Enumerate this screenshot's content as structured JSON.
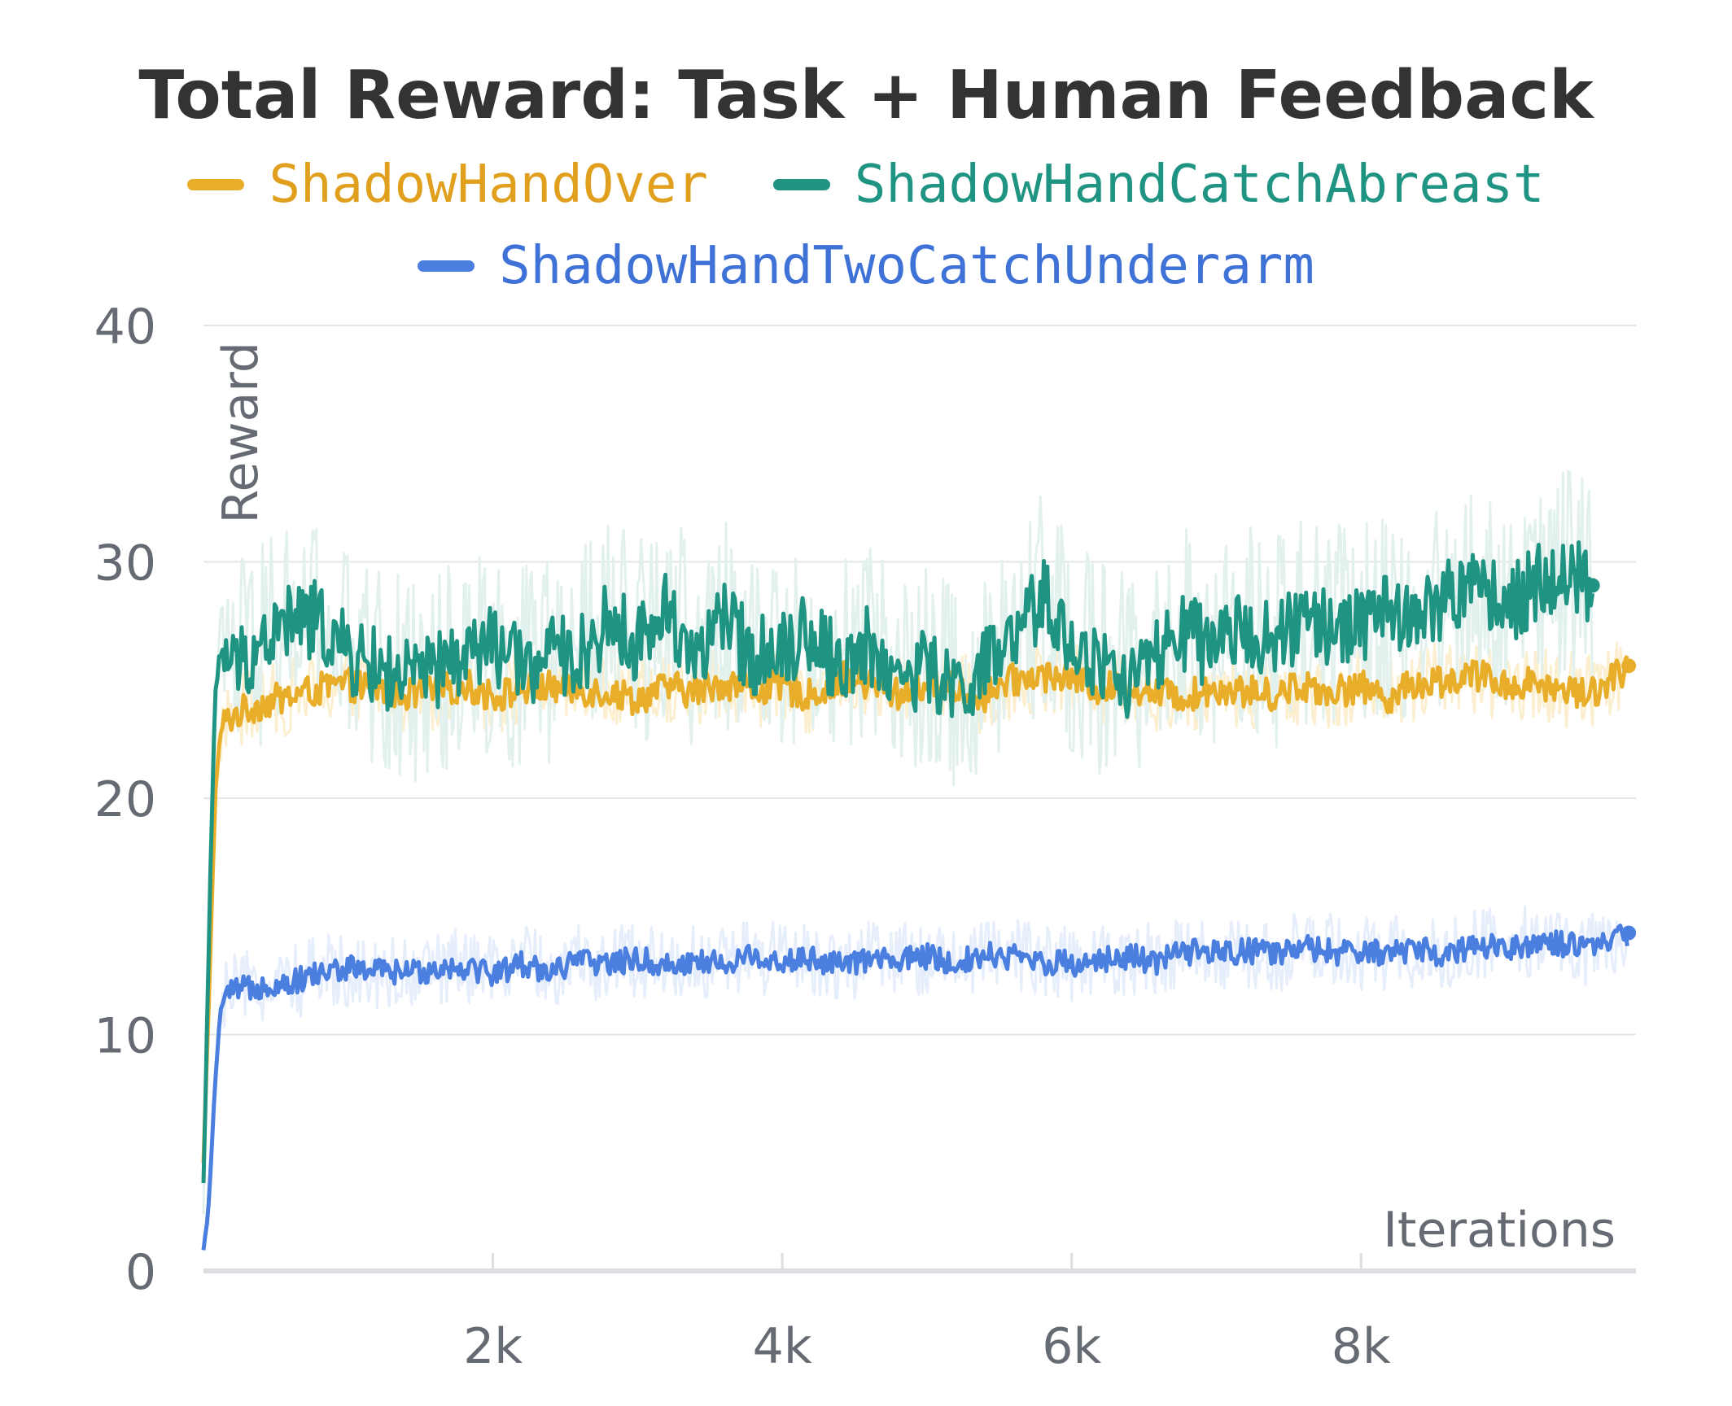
{
  "chart_data": {
    "type": "line",
    "title": "Total Reward: Task + Human Feedback",
    "xlabel": "Iterations",
    "ylabel": "Reward",
    "xlim": [
      0,
      9900
    ],
    "ylim": [
      0,
      40
    ],
    "xticks": [
      2000,
      4000,
      6000,
      8000
    ],
    "xtick_labels": [
      "2k",
      "4k",
      "6k",
      "8k"
    ],
    "yticks": [
      0,
      10,
      20,
      30,
      40
    ],
    "ytick_labels": [
      "0",
      "10",
      "20",
      "30",
      "40"
    ],
    "grid": true,
    "legend_position": "top",
    "series": [
      {
        "name": "ShadowHandOver",
        "color": "#E8AE2A",
        "x": [
          0,
          40,
          80,
          120,
          200,
          400,
          600,
          800,
          1000,
          1200,
          1400,
          1600,
          1800,
          2000,
          2200,
          2400,
          2600,
          2800,
          3000,
          3200,
          3400,
          3600,
          3800,
          4000,
          4200,
          4400,
          4600,
          4800,
          5000,
          5200,
          5400,
          5600,
          5800,
          6000,
          6200,
          6400,
          6600,
          6800,
          7000,
          7200,
          7400,
          7600,
          7800,
          8000,
          8200,
          8400,
          8600,
          8800,
          9000,
          9200,
          9400,
          9600,
          9850
        ],
        "values": [
          4.5,
          12,
          20,
          23,
          23.5,
          24,
          24.3,
          24.6,
          24.8,
          24.6,
          24.4,
          24.5,
          24.8,
          24.3,
          24.6,
          24.7,
          24.6,
          24.5,
          24.2,
          24.7,
          24.5,
          24.9,
          24.6,
          24.7,
          24.3,
          25.1,
          24.8,
          24.4,
          24.9,
          24.6,
          24.3,
          25.0,
          25.2,
          25.1,
          24.6,
          24.8,
          24.4,
          24.3,
          24.7,
          24.5,
          24.4,
          24.8,
          24.5,
          24.7,
          24.3,
          24.9,
          25.0,
          25.2,
          24.8,
          24.9,
          24.6,
          24.5,
          25.6
        ]
      },
      {
        "name": "ShadowHandCatchAbreast",
        "color": "#1F9482",
        "x": [
          0,
          40,
          80,
          120,
          200,
          400,
          600,
          800,
          1000,
          1200,
          1400,
          1600,
          1800,
          2000,
          2200,
          2400,
          2600,
          2800,
          3000,
          3200,
          3400,
          3600,
          3800,
          4000,
          4200,
          4400,
          4600,
          4800,
          5000,
          5200,
          5400,
          5600,
          5800,
          6000,
          6200,
          6400,
          6600,
          6800,
          7000,
          7200,
          7400,
          7600,
          7800,
          8000,
          8200,
          8400,
          8600,
          8800,
          9000,
          9200,
          9400,
          9600
        ],
        "values": [
          3.5,
          15,
          24,
          26.5,
          25.5,
          26.5,
          27.5,
          27.5,
          26.0,
          25.5,
          25.0,
          25.3,
          26.0,
          26.5,
          25.5,
          26.0,
          26.0,
          27.5,
          26.5,
          28.0,
          26.0,
          27.5,
          26.0,
          26.5,
          27.0,
          25.5,
          26.5,
          25.0,
          25.5,
          24.5,
          25.5,
          26.5,
          28.5,
          26.5,
          25.5,
          25.0,
          26.0,
          27.0,
          26.0,
          27.5,
          26.5,
          27.5,
          27.0,
          27.5,
          28.0,
          27.5,
          28.5,
          29.0,
          28.0,
          29.0,
          29.5,
          29.0
        ]
      },
      {
        "name": "ShadowHandTwoCatchUnderarm",
        "color": "#4A7FE0",
        "x": [
          0,
          40,
          80,
          120,
          200,
          400,
          600,
          800,
          1000,
          1200,
          1400,
          1600,
          1800,
          2000,
          2200,
          2400,
          2600,
          2800,
          3000,
          3200,
          3400,
          3600,
          3800,
          4000,
          4200,
          4400,
          4600,
          4800,
          5000,
          5200,
          5400,
          5600,
          5800,
          6000,
          6200,
          6400,
          6600,
          6800,
          7000,
          7200,
          7400,
          7600,
          7800,
          8000,
          8200,
          8400,
          8600,
          8800,
          9000,
          9200,
          9400,
          9600,
          9850
        ],
        "values": [
          0.8,
          3,
          8,
          11.2,
          11.8,
          12.1,
          12.2,
          12.6,
          12.8,
          12.7,
          12.6,
          12.8,
          12.9,
          12.6,
          13.0,
          12.7,
          13.1,
          13.0,
          13.2,
          12.9,
          13.1,
          13.0,
          13.3,
          13.1,
          13.2,
          12.9,
          13.2,
          13.1,
          13.3,
          13.0,
          13.4,
          13.3,
          13.1,
          13.0,
          13.2,
          13.3,
          13.1,
          13.5,
          13.4,
          13.6,
          13.3,
          13.7,
          13.5,
          13.4,
          13.5,
          13.6,
          13.4,
          13.8,
          13.7,
          13.9,
          13.8,
          13.6,
          14.3
        ]
      }
    ]
  }
}
